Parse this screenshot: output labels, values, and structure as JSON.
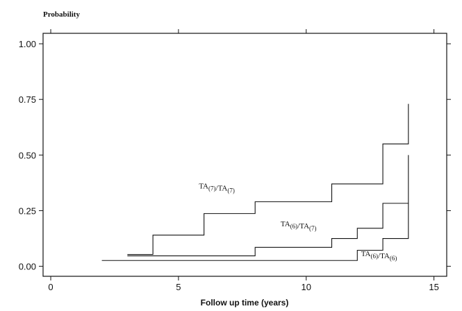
{
  "chart_data": {
    "type": "line",
    "step": true,
    "title": "",
    "xlabel": "Follow up time (years)",
    "ylabel": "Probability",
    "xlim": [
      -0.3,
      15.5
    ],
    "ylim": [
      -0.045,
      1.047
    ],
    "xticks": [
      0,
      5,
      10,
      15
    ],
    "xtick_labels": [
      "0",
      "5",
      "10",
      "15"
    ],
    "yticks": [
      0,
      0.25,
      0.5,
      0.75,
      1.0
    ],
    "ytick_labels": [
      "0.00",
      "0.25",
      "0.50",
      "0.75",
      "1.00"
    ],
    "grid": false,
    "legend": "none",
    "series_color": "#111111",
    "series": [
      {
        "name": "TA(7)/TA(7)",
        "x": [
          3,
          4,
          6,
          8,
          11,
          13,
          14
        ],
        "y": [
          0.053,
          0.14,
          0.237,
          0.29,
          0.37,
          0.55,
          0.73
        ]
      },
      {
        "name": "TA(6)/TA(7)",
        "x": [
          3,
          8,
          11,
          12,
          13,
          14
        ],
        "y": [
          0.047,
          0.085,
          0.125,
          0.171,
          0.283,
          0.5
        ]
      },
      {
        "name": "TA(6)/TA(6)",
        "x": [
          2,
          12,
          13,
          14
        ],
        "y": [
          0.026,
          0.072,
          0.125,
          0.283
        ]
      }
    ],
    "annotations": [
      {
        "text": "TA(7)/TA(7)",
        "x": 6.5,
        "y": 0.35
      },
      {
        "text": "TA(6)/TA(7)",
        "x": 9.7,
        "y": 0.18
      },
      {
        "text": "TA(6)/TA(6)",
        "x": 12.85,
        "y": 0.045
      }
    ]
  }
}
